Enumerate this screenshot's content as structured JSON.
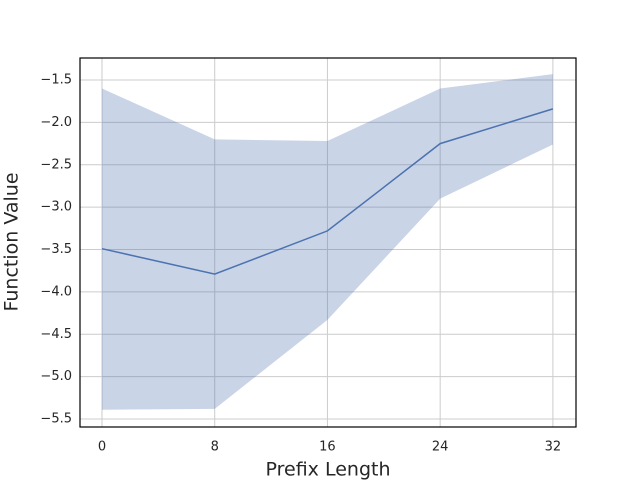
{
  "chart_data": {
    "type": "line",
    "x_label": "Prefix Length",
    "y_label": "Function Value",
    "x": [
      0,
      8,
      16,
      24,
      32
    ],
    "series": [
      {
        "color": "#4c72b0",
        "values": [
          -3.49,
          -3.79,
          -3.28,
          -2.25,
          -1.84
        ],
        "lower": [
          -5.39,
          -5.38,
          -4.33,
          -2.9,
          -2.26
        ],
        "upper": [
          -1.6,
          -2.2,
          -2.22,
          -1.6,
          -1.43
        ]
      }
    ],
    "xlim": [
      -1.56,
      33.64
    ],
    "ylim": [
      -5.594,
      -1.24
    ],
    "xticks": [
      0,
      8,
      16,
      24,
      32
    ],
    "yticks": [
      {
        "value": -5.5,
        "label": "−5.5"
      },
      {
        "value": -5.0,
        "label": "−5.0"
      },
      {
        "value": -4.5,
        "label": "−4.5"
      },
      {
        "value": -4.0,
        "label": "−4.0"
      },
      {
        "value": -3.5,
        "label": "−3.5"
      },
      {
        "value": -3.0,
        "label": "−3.0"
      },
      {
        "value": -2.5,
        "label": "−2.5"
      },
      {
        "value": -2.0,
        "label": "−2.0"
      },
      {
        "value": -1.5,
        "label": "−1.5"
      }
    ],
    "grid": true
  }
}
